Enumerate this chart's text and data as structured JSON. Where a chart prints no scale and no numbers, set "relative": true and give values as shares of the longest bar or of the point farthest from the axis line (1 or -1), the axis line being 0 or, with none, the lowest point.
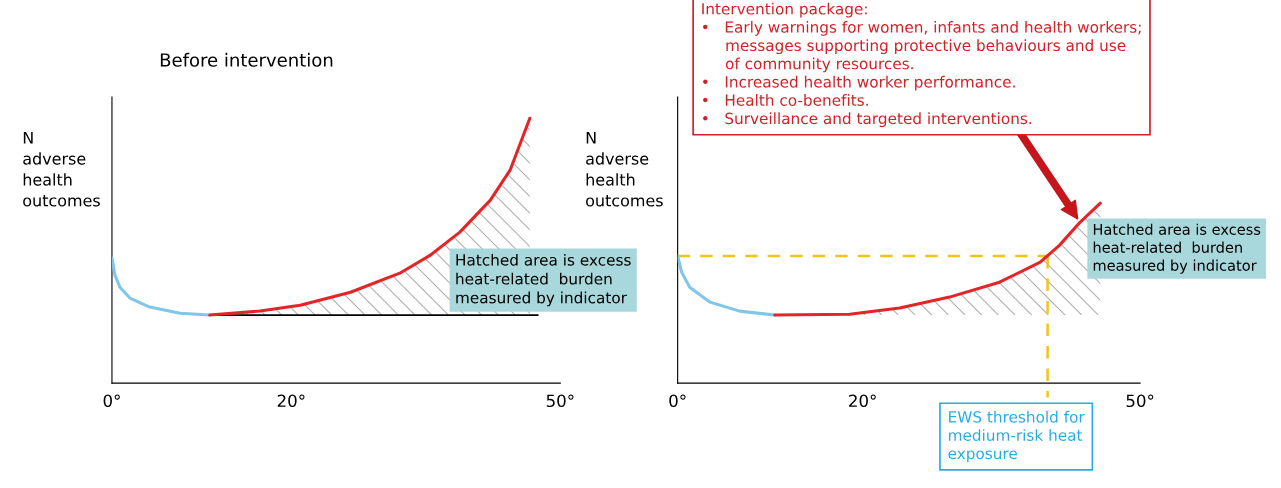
{
  "chart_data": [
    {
      "type": "line",
      "title": "Before intervention",
      "ylabel": "N\nadverse\nhealth\noutcomes",
      "relative": true,
      "xlim": [
        0,
        50
      ],
      "xticks": [
        {
          "value": 0,
          "label": "0°"
        },
        {
          "value": 20,
          "label": "20°"
        },
        {
          "value": 50,
          "label": "50°"
        }
      ],
      "series": [
        {
          "color": "#7fc6ea",
          "x": [
            0,
            0.33,
            0.89,
            2.0,
            4.2,
            7.6,
            10.9
          ],
          "values": [
            0.472,
            0.408,
            0.362,
            0.321,
            0.287,
            0.264,
            0.257
          ]
        },
        {
          "color": "#e42527",
          "x": [
            10.9,
            16.5,
            21.0,
            26.6,
            32.1,
            35.5,
            38.8,
            42.2,
            44.4,
            46.6
          ],
          "values": [
            0.257,
            0.272,
            0.294,
            0.343,
            0.415,
            0.483,
            0.57,
            0.691,
            0.804,
            1.0
          ],
          "lower": [
            0.257,
            0.257,
            0.257,
            0.257,
            0.257,
            0.257,
            0.257,
            0.257,
            0.257,
            0.257
          ],
          "upper": [
            0.257,
            0.272,
            0.294,
            0.343,
            0.415,
            0.483,
            0.57,
            0.691,
            0.804,
            1.0
          ]
        },
        {
          "color": "#000000",
          "x": [
            10.9,
            47.5
          ],
          "values": [
            0.257,
            0.257
          ]
        }
      ],
      "annotations": [
        "Hatched area is excess\nheat-related  burden\nmeasured by indicator"
      ]
    },
    {
      "type": "line",
      "ylabel": "N\nadverse\nhealth\noutcomes",
      "relative": true,
      "xlim": [
        0,
        50
      ],
      "xticks": [
        {
          "value": 0,
          "label": "0°"
        },
        {
          "value": 20,
          "label": "20°"
        },
        {
          "value": 50,
          "label": "50°"
        }
      ],
      "series": [
        {
          "color": "#7fc6ea",
          "x": [
            0,
            0.43,
            1.3,
            3.5,
            6.7,
            10.5
          ],
          "values": [
            0.706,
            0.617,
            0.533,
            0.45,
            0.4,
            0.378
          ]
        },
        {
          "color": "#e42527",
          "x": [
            10.5,
            18.6,
            24.0,
            29.4,
            34.8,
            39.2,
            41.3,
            43.5,
            45.7
          ],
          "values": [
            0.378,
            0.383,
            0.417,
            0.478,
            0.561,
            0.672,
            0.767,
            0.894,
            1.0
          ],
          "lower": [
            0.378,
            0.378,
            0.378,
            0.378,
            0.378,
            0.378,
            0.378,
            0.378,
            0.378
          ],
          "upper": [
            0.378,
            0.383,
            0.417,
            0.478,
            0.561,
            0.672,
            0.767,
            0.894,
            1.0
          ]
        }
      ],
      "ref_lines": [
        {
          "axis": "y",
          "value": 0.706,
          "color": "#f0c419",
          "line_style": "dashed"
        },
        {
          "axis": "x",
          "value": 40.0,
          "label": "EWS threshold for\nmedium-risk heat\nexposure",
          "color": "#f0c419",
          "line_style": "dashed"
        }
      ],
      "annotations": [
        "Hatched area is excess\nheat-related  burden\nmeasured by indicator",
        "Intervention package:\n•   Early warnings for women, infants and health workers;\n     messages supporting protective behaviours and use\n     of community resources.\n•   Increased health worker performance.\n•   Health co-benefits.\n•   Surveillance and targeted interventions."
      ]
    }
  ]
}
